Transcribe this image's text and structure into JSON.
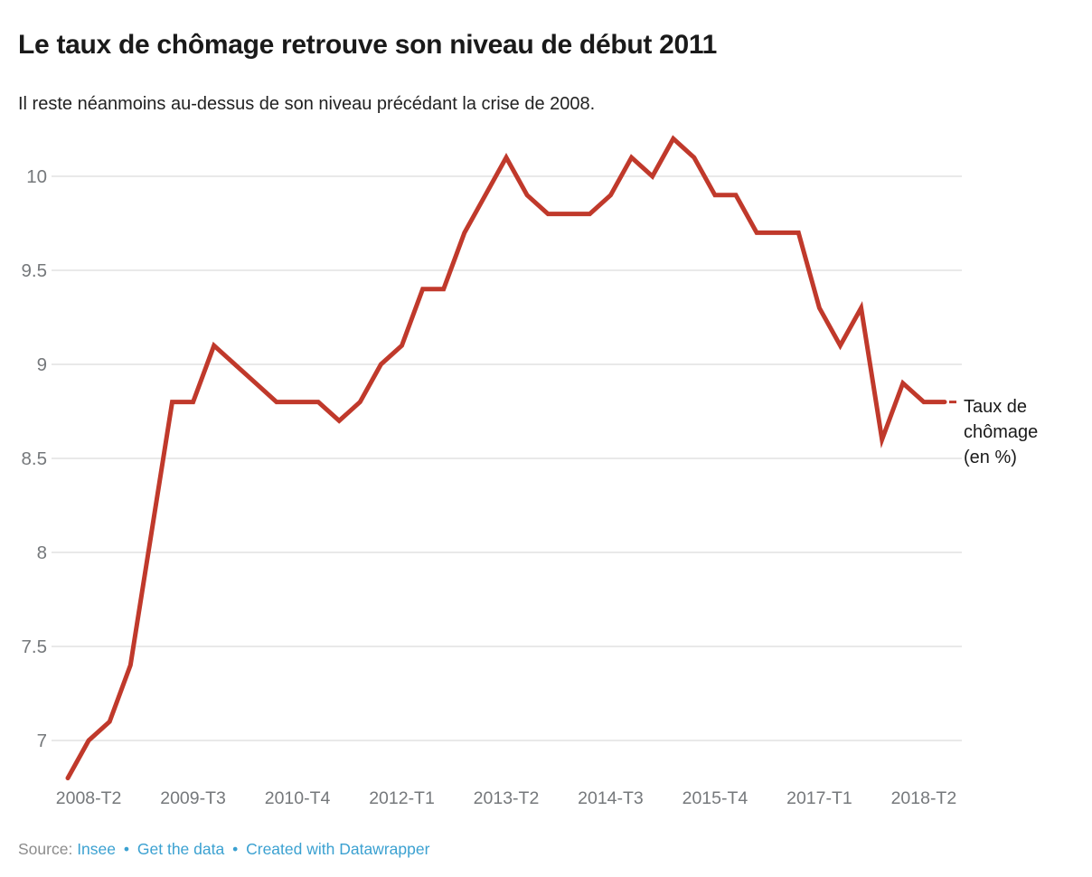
{
  "header": {
    "title": "Le taux de chômage retrouve son niveau de début 2011",
    "subtitle": "Il reste néanmoins au-dessus de son niveau précédant la crise de 2008."
  },
  "annotation": {
    "full": "Taux de chômage (en %)",
    "label_lines": {
      "0": "Taux de",
      "1": "chômage",
      "2": "(en %)"
    }
  },
  "footer": {
    "source_label": "Source:",
    "source_link": "Insee",
    "separator": "•",
    "data_link": "Get the data",
    "credit_link": "Created with Datawrapper"
  },
  "colors": {
    "line": "#c0392b",
    "grid": "#e2e2e2",
    "axis_text": "#75787b",
    "heading_text": "#1a1a1a",
    "link": "#3ba1d1",
    "source_label_text": "#8c8c8c"
  },
  "chart_data": {
    "type": "line",
    "title": "Le taux de chômage retrouve son niveau de début 2011",
    "subtitle": "Il reste néanmoins au-dessus de son niveau précédant la crise de 2008.",
    "series_label": "Taux de chômage (en %)",
    "xlabel": "",
    "ylabel": "Taux de chômage (en %)",
    "x": [
      "2008-T1",
      "2008-T2",
      "2008-T3",
      "2008-T4",
      "2009-T1",
      "2009-T2",
      "2009-T3",
      "2009-T4",
      "2010-T1",
      "2010-T2",
      "2010-T3",
      "2010-T4",
      "2011-T1",
      "2011-T2",
      "2011-T3",
      "2011-T4",
      "2012-T1",
      "2012-T2",
      "2012-T3",
      "2012-T4",
      "2013-T1",
      "2013-T2",
      "2013-T3",
      "2013-T4",
      "2014-T1",
      "2014-T2",
      "2014-T3",
      "2014-T4",
      "2015-T1",
      "2015-T2",
      "2015-T3",
      "2015-T4",
      "2016-T1",
      "2016-T2",
      "2016-T3",
      "2016-T4",
      "2017-T1",
      "2017-T2",
      "2017-T3",
      "2017-T4",
      "2018-T1",
      "2018-T2",
      "2018-T3"
    ],
    "values": [
      6.8,
      7.0,
      7.1,
      7.4,
      8.1,
      8.8,
      8.8,
      9.1,
      9.0,
      8.9,
      8.8,
      8.8,
      8.8,
      8.7,
      8.8,
      9.0,
      9.1,
      9.4,
      9.4,
      9.7,
      9.9,
      10.1,
      9.9,
      9.8,
      9.8,
      9.8,
      9.9,
      10.1,
      10.0,
      10.2,
      10.1,
      9.9,
      9.9,
      9.7,
      9.7,
      9.7,
      9.3,
      9.1,
      9.3,
      8.6,
      8.9,
      8.8,
      8.8
    ],
    "y_ticks": [
      10,
      9.5,
      9,
      8.5,
      8,
      7.5,
      7
    ],
    "x_tick_labels": [
      "2008-T2",
      "2009-T3",
      "2010-T4",
      "2012-T1",
      "2013-T2",
      "2014-T3",
      "2015-T4",
      "2017-T1",
      "2018-T2"
    ],
    "x_tick_indices": [
      1,
      6,
      11,
      16,
      21,
      26,
      31,
      36,
      41
    ],
    "ylim": [
      6.78,
      10.25
    ],
    "grid": true,
    "legend_position": "right-end-label"
  }
}
